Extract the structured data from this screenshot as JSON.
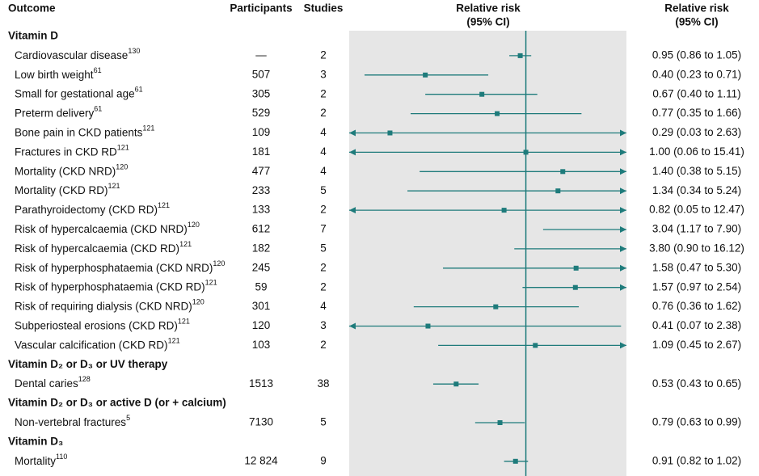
{
  "chart_data": {
    "type": "forest",
    "log_scale": true,
    "xlim": [
      0.2,
      2.5
    ],
    "reference": 1,
    "color": "#1e7b7b",
    "columns": [
      "Outcome",
      "Participants",
      "Studies"
    ],
    "plot_header": [
      "Relative risk",
      "(95% CI)"
    ],
    "ci_header": [
      "Relative risk",
      "(95% CI)"
    ],
    "groups": [
      {
        "name": "Vitamin D",
        "rows": [
          {
            "outcome": "Cardiovascular disease",
            "ref": "130",
            "participants": "—",
            "studies": 2,
            "rr": 0.95,
            "lo": 0.86,
            "hi": 1.05,
            "ci_label": "0.95 (0.86 to 1.05)"
          },
          {
            "outcome": "Low birth weight",
            "ref": "61",
            "participants": "507",
            "studies": 3,
            "rr": 0.4,
            "lo": 0.23,
            "hi": 0.71,
            "ci_label": "0.40 (0.23 to 0.71)"
          },
          {
            "outcome": "Small for gestational age",
            "ref": "61",
            "participants": "305",
            "studies": 2,
            "rr": 0.67,
            "lo": 0.4,
            "hi": 1.11,
            "ci_label": "0.67 (0.40 to 1.11)"
          },
          {
            "outcome": "Preterm delivery",
            "ref": "61",
            "participants": "529",
            "studies": 2,
            "rr": 0.77,
            "lo": 0.35,
            "hi": 1.66,
            "ci_label": "0.77 (0.35 to 1.66)"
          },
          {
            "outcome": "Bone pain in CKD patients",
            "ref": "121",
            "participants": "109",
            "studies": 4,
            "rr": 0.29,
            "lo": 0.03,
            "hi": 2.63,
            "ci_label": "0.29 (0.03 to 2.63)"
          },
          {
            "outcome": "Fractures in CKD RD",
            "ref": "121",
            "participants": "181",
            "studies": 4,
            "rr": 1.0,
            "lo": 0.06,
            "hi": 15.41,
            "ci_label": "1.00 (0.06 to 15.41)"
          },
          {
            "outcome": "Mortality (CKD NRD)",
            "ref": "120",
            "participants": "477",
            "studies": 4,
            "rr": 1.4,
            "lo": 0.38,
            "hi": 5.15,
            "ci_label": "1.40 (0.38 to 5.15)"
          },
          {
            "outcome": "Mortality (CKD RD)",
            "ref": "121",
            "participants": "233",
            "studies": 5,
            "rr": 1.34,
            "lo": 0.34,
            "hi": 5.24,
            "ci_label": "1.34 (0.34 to 5.24)"
          },
          {
            "outcome": "Parathyroidectomy (CKD RD)",
            "ref": "121",
            "participants": "133",
            "studies": 2,
            "rr": 0.82,
            "lo": 0.05,
            "hi": 12.47,
            "ci_label": "0.82 (0.05 to 12.47)"
          },
          {
            "outcome": "Risk of hypercalcaemia (CKD NRD)",
            "ref": "120",
            "participants": "612",
            "studies": 7,
            "rr": 3.04,
            "lo": 1.17,
            "hi": 7.9,
            "ci_label": "3.04 (1.17 to 7.90)"
          },
          {
            "outcome": "Risk of hypercalcaemia (CKD RD)",
            "ref": "121",
            "participants": "182",
            "studies": 5,
            "rr": 3.8,
            "lo": 0.9,
            "hi": 16.12,
            "ci_label": "3.80 (0.90 to 16.12)"
          },
          {
            "outcome": "Risk of hyperphosphataemia (CKD NRD)",
            "ref": "120",
            "participants": "245",
            "studies": 2,
            "rr": 1.58,
            "lo": 0.47,
            "hi": 5.3,
            "ci_label": "1.58 (0.47 to 5.30)"
          },
          {
            "outcome": "Risk of hyperphosphataemia (CKD RD)",
            "ref": "121",
            "participants": "59",
            "studies": 2,
            "rr": 1.57,
            "lo": 0.97,
            "hi": 2.54,
            "ci_label": "1.57 (0.97 to 2.54)"
          },
          {
            "outcome": "Risk of requiring dialysis (CKD NRD)",
            "ref": "120",
            "participants": "301",
            "studies": 4,
            "rr": 0.76,
            "lo": 0.36,
            "hi": 1.62,
            "ci_label": "0.76 (0.36 to 1.62)"
          },
          {
            "outcome": "Subperiosteal erosions (CKD RD)",
            "ref": "121",
            "participants": "120",
            "studies": 3,
            "rr": 0.41,
            "lo": 0.07,
            "hi": 2.38,
            "ci_label": "0.41 (0.07 to 2.38)"
          },
          {
            "outcome": "Vascular calcification (CKD RD)",
            "ref": "121",
            "participants": "103",
            "studies": 2,
            "rr": 1.09,
            "lo": 0.45,
            "hi": 2.67,
            "ci_label": "1.09 (0.45 to 2.67)"
          }
        ]
      },
      {
        "name": "Vitamin D₂ or D₃ or UV therapy",
        "rows": [
          {
            "outcome": "Dental caries",
            "ref": "128",
            "participants": "1513",
            "studies": 38,
            "rr": 0.53,
            "lo": 0.43,
            "hi": 0.65,
            "ci_label": "0.53 (0.43 to 0.65)"
          }
        ]
      },
      {
        "name": "Vitamin D₂ or D₃ or active D (or + calcium)",
        "rows": [
          {
            "outcome": "Non-vertebral fractures",
            "ref": "5",
            "participants": "7130",
            "studies": 5,
            "rr": 0.79,
            "lo": 0.63,
            "hi": 0.99,
            "ci_label": "0.79 (0.63 to 0.99)"
          }
        ]
      },
      {
        "name": "Vitamin D₃",
        "rows": [
          {
            "outcome": "Mortality",
            "ref": "110",
            "participants": "12 824",
            "studies": 9,
            "rr": 0.91,
            "lo": 0.82,
            "hi": 1.02,
            "ci_label": "0.91 (0.82 to 1.02)"
          }
        ]
      }
    ]
  }
}
